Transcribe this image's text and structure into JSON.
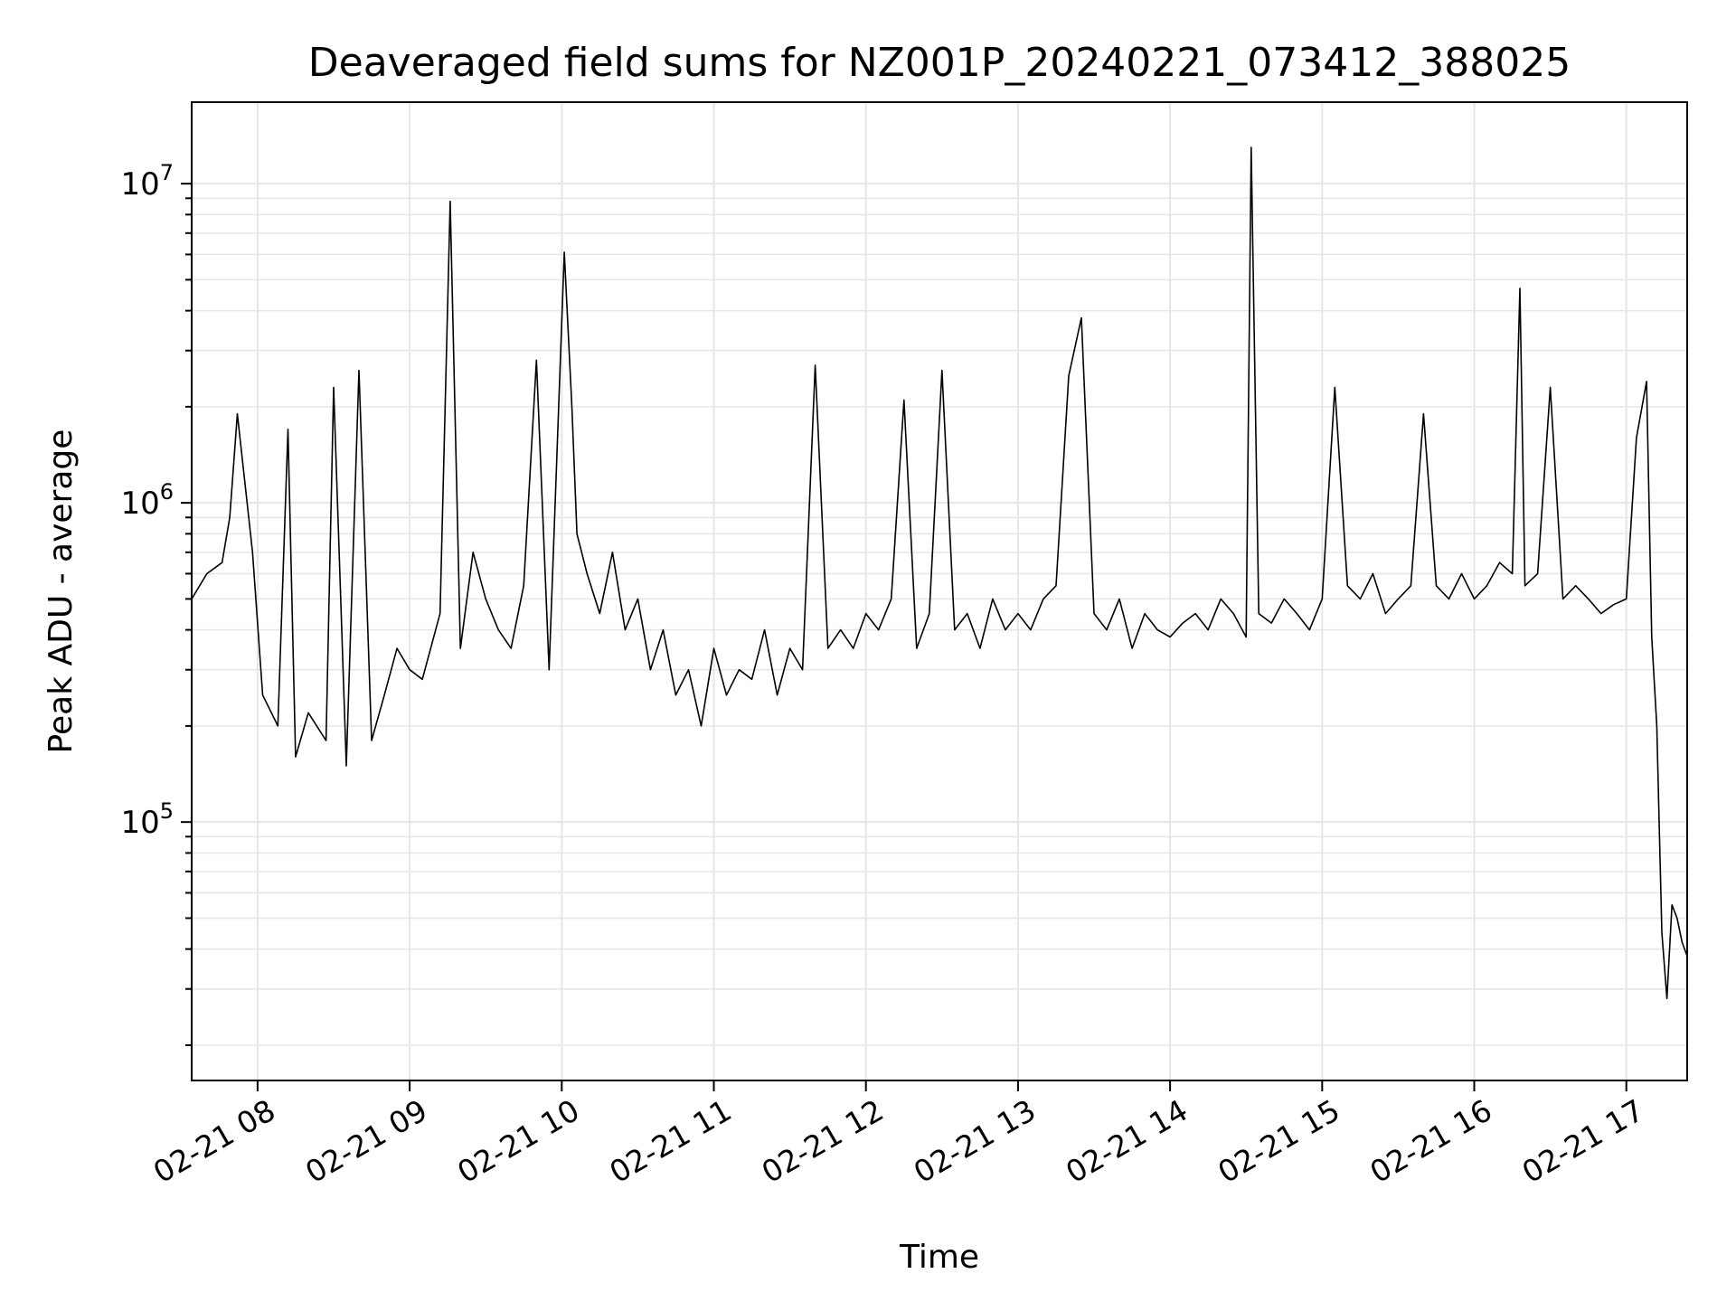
{
  "chart_data": {
    "type": "line",
    "title": "Deaveraged field sums for NZ001P_20240221_073412_388025",
    "xlabel": "Time",
    "ylabel": "Peak ADU - average",
    "yscale": "log",
    "ylim": [
      15500,
      18000000
    ],
    "xlim": [
      "2024-02-21 07:34",
      "2024-02-21 17:24"
    ],
    "grid": true,
    "line_color": "#000000",
    "grid_color": "#e6e6e6",
    "x_ticks": [
      {
        "value": "2024-02-21 08:00",
        "label": "02-21 08"
      },
      {
        "value": "2024-02-21 09:00",
        "label": "02-21 09"
      },
      {
        "value": "2024-02-21 10:00",
        "label": "02-21 10"
      },
      {
        "value": "2024-02-21 11:00",
        "label": "02-21 11"
      },
      {
        "value": "2024-02-21 12:00",
        "label": "02-21 12"
      },
      {
        "value": "2024-02-21 13:00",
        "label": "02-21 13"
      },
      {
        "value": "2024-02-21 14:00",
        "label": "02-21 14"
      },
      {
        "value": "2024-02-21 15:00",
        "label": "02-21 15"
      },
      {
        "value": "2024-02-21 16:00",
        "label": "02-21 16"
      },
      {
        "value": "2024-02-21 17:00",
        "label": "02-21 17"
      }
    ],
    "y_ticks": [
      {
        "value": 100000,
        "base": "10",
        "exp": "5"
      },
      {
        "value": 1000000,
        "base": "10",
        "exp": "6"
      },
      {
        "value": 10000000,
        "base": "10",
        "exp": "7"
      }
    ],
    "series": [
      {
        "x": [
          "2024-02-21 07:34",
          "2024-02-21 07:40",
          "2024-02-21 07:46",
          "2024-02-21 07:49",
          "2024-02-21 07:52",
          "2024-02-21 07:58",
          "2024-02-21 08:02",
          "2024-02-21 08:08",
          "2024-02-21 08:12",
          "2024-02-21 08:15",
          "2024-02-21 08:20",
          "2024-02-21 08:27",
          "2024-02-21 08:30",
          "2024-02-21 08:35",
          "2024-02-21 08:40",
          "2024-02-21 08:45",
          "2024-02-21 08:50",
          "2024-02-21 08:55",
          "2024-02-21 09:00",
          "2024-02-21 09:05",
          "2024-02-21 09:12",
          "2024-02-21 09:16",
          "2024-02-21 09:20",
          "2024-02-21 09:25",
          "2024-02-21 09:30",
          "2024-02-21 09:35",
          "2024-02-21 09:40",
          "2024-02-21 09:45",
          "2024-02-21 09:50",
          "2024-02-21 09:55",
          "2024-02-21 10:01",
          "2024-02-21 10:04",
          "2024-02-21 10:06",
          "2024-02-21 10:10",
          "2024-02-21 10:15",
          "2024-02-21 10:20",
          "2024-02-21 10:25",
          "2024-02-21 10:30",
          "2024-02-21 10:35",
          "2024-02-21 10:40",
          "2024-02-21 10:45",
          "2024-02-21 10:50",
          "2024-02-21 10:55",
          "2024-02-21 11:00",
          "2024-02-21 11:05",
          "2024-02-21 11:10",
          "2024-02-21 11:15",
          "2024-02-21 11:20",
          "2024-02-21 11:25",
          "2024-02-21 11:30",
          "2024-02-21 11:35",
          "2024-02-21 11:40",
          "2024-02-21 11:45",
          "2024-02-21 11:50",
          "2024-02-21 11:55",
          "2024-02-21 12:00",
          "2024-02-21 12:05",
          "2024-02-21 12:10",
          "2024-02-21 12:15",
          "2024-02-21 12:20",
          "2024-02-21 12:25",
          "2024-02-21 12:30",
          "2024-02-21 12:35",
          "2024-02-21 12:40",
          "2024-02-21 12:45",
          "2024-02-21 12:50",
          "2024-02-21 12:55",
          "2024-02-21 13:00",
          "2024-02-21 13:05",
          "2024-02-21 13:10",
          "2024-02-21 13:15",
          "2024-02-21 13:20",
          "2024-02-21 13:25",
          "2024-02-21 13:30",
          "2024-02-21 13:35",
          "2024-02-21 13:40",
          "2024-02-21 13:45",
          "2024-02-21 13:50",
          "2024-02-21 13:55",
          "2024-02-21 14:00",
          "2024-02-21 14:05",
          "2024-02-21 14:10",
          "2024-02-21 14:15",
          "2024-02-21 14:20",
          "2024-02-21 14:25",
          "2024-02-21 14:30",
          "2024-02-21 14:32",
          "2024-02-21 14:35",
          "2024-02-21 14:40",
          "2024-02-21 14:45",
          "2024-02-21 14:50",
          "2024-02-21 14:55",
          "2024-02-21 15:00",
          "2024-02-21 15:05",
          "2024-02-21 15:10",
          "2024-02-21 15:15",
          "2024-02-21 15:20",
          "2024-02-21 15:25",
          "2024-02-21 15:30",
          "2024-02-21 15:35",
          "2024-02-21 15:40",
          "2024-02-21 15:45",
          "2024-02-21 15:50",
          "2024-02-21 15:55",
          "2024-02-21 16:00",
          "2024-02-21 16:05",
          "2024-02-21 16:10",
          "2024-02-21 16:15",
          "2024-02-21 16:18",
          "2024-02-21 16:20",
          "2024-02-21 16:25",
          "2024-02-21 16:30",
          "2024-02-21 16:35",
          "2024-02-21 16:40",
          "2024-02-21 16:45",
          "2024-02-21 16:50",
          "2024-02-21 16:55",
          "2024-02-21 17:00",
          "2024-02-21 17:04",
          "2024-02-21 17:08",
          "2024-02-21 17:10",
          "2024-02-21 17:12",
          "2024-02-21 17:14",
          "2024-02-21 17:16",
          "2024-02-21 17:18",
          "2024-02-21 17:20",
          "2024-02-21 17:22",
          "2024-02-21 17:24"
        ],
        "y": [
          500000,
          600000,
          650000,
          900000,
          1900000,
          700000,
          250000,
          200000,
          1700000,
          160000,
          220000,
          180000,
          2300000,
          150000,
          2600000,
          180000,
          250000,
          350000,
          300000,
          280000,
          450000,
          8800000,
          350000,
          700000,
          500000,
          400000,
          350000,
          550000,
          2800000,
          300000,
          6100000,
          2000000,
          800000,
          600000,
          450000,
          700000,
          400000,
          500000,
          300000,
          400000,
          250000,
          300000,
          200000,
          350000,
          250000,
          300000,
          280000,
          400000,
          250000,
          350000,
          300000,
          2700000,
          350000,
          400000,
          350000,
          450000,
          400000,
          500000,
          2100000,
          350000,
          450000,
          2600000,
          400000,
          450000,
          350000,
          500000,
          400000,
          450000,
          400000,
          500000,
          550000,
          2500000,
          3800000,
          450000,
          400000,
          500000,
          350000,
          450000,
          400000,
          380000,
          420000,
          450000,
          400000,
          500000,
          450000,
          380000,
          13000000,
          450000,
          420000,
          500000,
          450000,
          400000,
          500000,
          2300000,
          550000,
          500000,
          600000,
          450000,
          500000,
          550000,
          1900000,
          550000,
          500000,
          600000,
          500000,
          550000,
          650000,
          600000,
          4700000,
          550000,
          600000,
          2300000,
          500000,
          550000,
          500000,
          450000,
          480000,
          500000,
          1600000,
          2400000,
          380000,
          200000,
          45000,
          28000,
          55000,
          50000,
          42000,
          38000
        ]
      }
    ]
  }
}
